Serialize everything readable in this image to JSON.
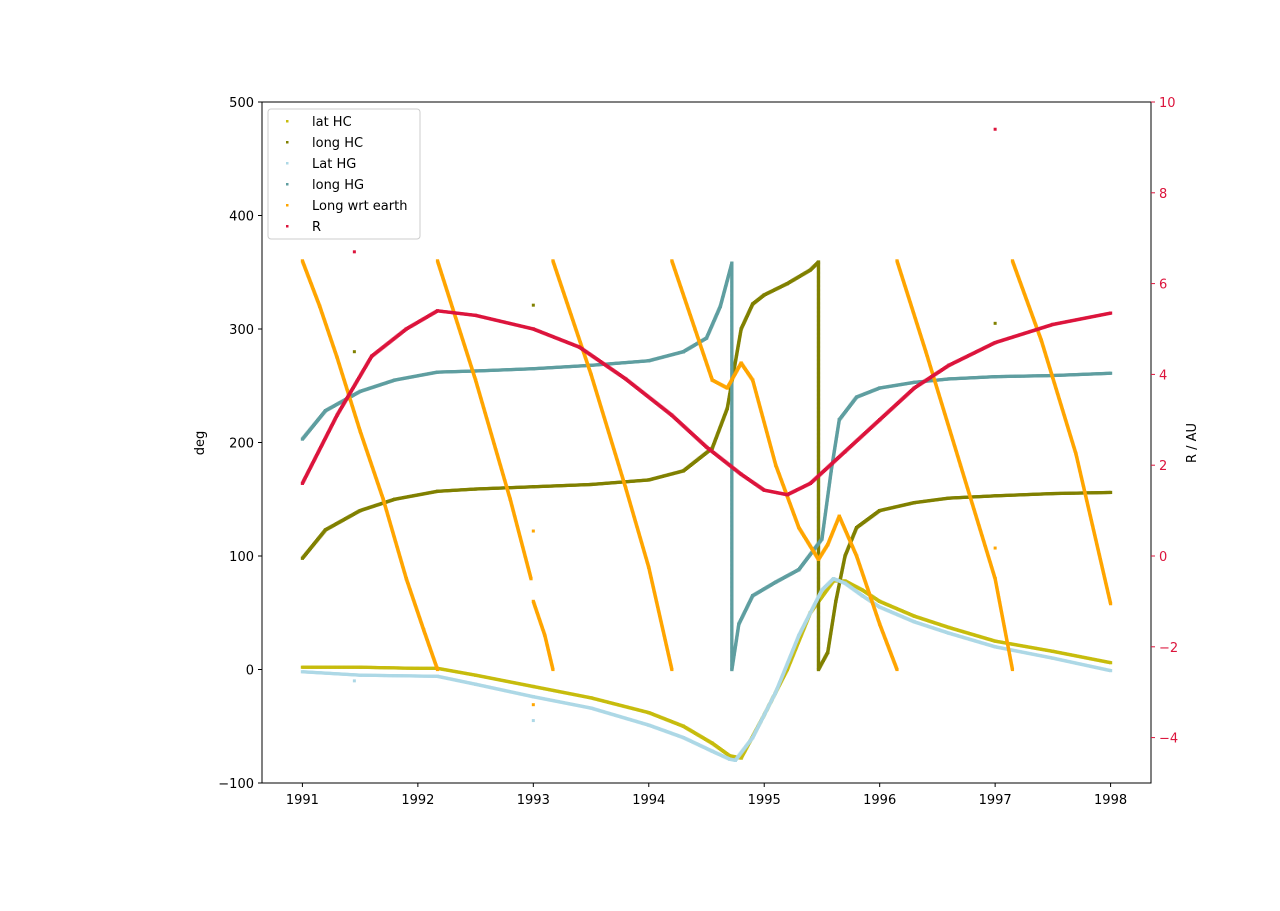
{
  "chart_data": {
    "type": "scatter",
    "title": "",
    "xlabel": "",
    "ylabel": "deg",
    "y2label": "R / AU",
    "xlim": [
      1990.65,
      1998.35
    ],
    "ylim": [
      -100,
      500
    ],
    "y2lim": [
      -5,
      10
    ],
    "x_ticks": [
      1991,
      1992,
      1993,
      1994,
      1995,
      1996,
      1997,
      1998
    ],
    "y_ticks": [
      -100,
      0,
      100,
      200,
      300,
      400,
      500
    ],
    "y2_ticks": [
      -4,
      -2,
      0,
      2,
      4,
      6,
      8,
      10
    ],
    "grid": false,
    "legend_position": "upper-left",
    "colors": {
      "lat_hc": "#c7bc0d",
      "long_hc": "#808000",
      "lat_hg": "#add8e6",
      "long_hg": "#5f9ea0",
      "long_wrt_earth": "#ffa500",
      "r": "#dc143c",
      "r_axis": "#dc143c"
    },
    "series": [
      {
        "name": "lat HC",
        "key": "lat_hc",
        "axis": "left",
        "points": [
          [
            1991.0,
            2
          ],
          [
            1991.5,
            2
          ],
          [
            1992.0,
            1
          ],
          [
            1992.17,
            1
          ],
          [
            1992.5,
            -5
          ],
          [
            1993.0,
            -15
          ],
          [
            1993.5,
            -25
          ],
          [
            1994.0,
            -38
          ],
          [
            1994.3,
            -50
          ],
          [
            1994.55,
            -65
          ],
          [
            1994.7,
            -76
          ],
          [
            1994.8,
            -78
          ],
          [
            1995.0,
            -40
          ],
          [
            1995.2,
            0
          ],
          [
            1995.4,
            50
          ],
          [
            1995.6,
            78
          ],
          [
            1995.7,
            78
          ],
          [
            1995.85,
            70
          ],
          [
            1996.0,
            60
          ],
          [
            1996.3,
            47
          ],
          [
            1996.6,
            37
          ],
          [
            1997.0,
            25
          ],
          [
            1997.5,
            16
          ],
          [
            1998.0,
            6
          ]
        ]
      },
      {
        "name": "long HC",
        "key": "long_hc",
        "axis": "left",
        "points": [
          [
            1991.0,
            98
          ],
          [
            1991.2,
            123
          ],
          [
            1991.5,
            140
          ],
          [
            1991.8,
            150
          ],
          [
            1992.17,
            157
          ],
          [
            1992.5,
            159
          ],
          [
            1993.0,
            161
          ],
          [
            1993.5,
            163
          ],
          [
            1994.0,
            167
          ],
          [
            1994.3,
            175
          ],
          [
            1994.55,
            195
          ],
          [
            1994.68,
            230
          ],
          [
            1994.8,
            300
          ],
          [
            1994.9,
            322
          ],
          [
            1995.0,
            330
          ],
          [
            1995.2,
            340
          ],
          [
            1995.4,
            352
          ],
          [
            1995.47,
            359
          ],
          [
            1995.47,
            0
          ],
          [
            1995.55,
            15
          ],
          [
            1995.62,
            60
          ],
          [
            1995.7,
            100
          ],
          [
            1995.8,
            125
          ],
          [
            1996.0,
            140
          ],
          [
            1996.3,
            147
          ],
          [
            1996.6,
            151
          ],
          [
            1997.0,
            153
          ],
          [
            1997.5,
            155
          ],
          [
            1998.0,
            156
          ]
        ]
      },
      {
        "name": "Lat HG",
        "key": "lat_hg",
        "axis": "left",
        "points": [
          [
            1991.0,
            -2
          ],
          [
            1991.5,
            -5
          ],
          [
            1992.17,
            -6
          ],
          [
            1992.5,
            -13
          ],
          [
            1993.0,
            -24
          ],
          [
            1993.5,
            -34
          ],
          [
            1994.0,
            -49
          ],
          [
            1994.3,
            -60
          ],
          [
            1994.55,
            -72
          ],
          [
            1994.7,
            -79
          ],
          [
            1994.75,
            -80
          ],
          [
            1994.9,
            -60
          ],
          [
            1995.1,
            -20
          ],
          [
            1995.3,
            30
          ],
          [
            1995.5,
            70
          ],
          [
            1995.6,
            80
          ],
          [
            1995.7,
            76
          ],
          [
            1995.85,
            65
          ],
          [
            1996.0,
            55
          ],
          [
            1996.3,
            42
          ],
          [
            1996.6,
            32
          ],
          [
            1997.0,
            20
          ],
          [
            1997.5,
            10
          ],
          [
            1998.0,
            -1
          ]
        ]
      },
      {
        "name": "long HG",
        "key": "long_hg",
        "axis": "left",
        "points": [
          [
            1991.0,
            203
          ],
          [
            1991.2,
            228
          ],
          [
            1991.5,
            245
          ],
          [
            1991.8,
            255
          ],
          [
            1992.17,
            262
          ],
          [
            1992.5,
            263
          ],
          [
            1993.0,
            265
          ],
          [
            1993.5,
            268
          ],
          [
            1994.0,
            272
          ],
          [
            1994.3,
            280
          ],
          [
            1994.5,
            292
          ],
          [
            1994.62,
            320
          ],
          [
            1994.72,
            358
          ],
          [
            1994.72,
            0
          ],
          [
            1994.78,
            40
          ],
          [
            1994.9,
            65
          ],
          [
            1995.1,
            77
          ],
          [
            1995.3,
            88
          ],
          [
            1995.5,
            115
          ],
          [
            1995.58,
            175
          ],
          [
            1995.65,
            220
          ],
          [
            1995.8,
            240
          ],
          [
            1996.0,
            248
          ],
          [
            1996.3,
            253
          ],
          [
            1996.6,
            256
          ],
          [
            1997.0,
            258
          ],
          [
            1997.5,
            259
          ],
          [
            1998.0,
            261
          ]
        ]
      },
      {
        "name": "Long wrt earth",
        "key": "long_wrt_earth",
        "axis": "left",
        "segments": [
          [
            [
              1991.0,
              360
            ],
            [
              1991.15,
              320
            ],
            [
              1991.3,
              275
            ],
            [
              1991.5,
              210
            ],
            [
              1991.7,
              150
            ],
            [
              1991.9,
              80
            ],
            [
              1992.05,
              35
            ],
            [
              1992.17,
              0
            ]
          ],
          [
            [
              1992.17,
              360
            ],
            [
              1992.5,
              255
            ],
            [
              1992.8,
              150
            ],
            [
              1992.98,
              80
            ]
          ],
          [
            [
              1993.0,
              60
            ],
            [
              1993.1,
              30
            ],
            [
              1993.17,
              0
            ]
          ],
          [
            [
              1993.17,
              360
            ],
            [
              1993.5,
              260
            ],
            [
              1993.8,
              160
            ],
            [
              1994.0,
              90
            ],
            [
              1994.2,
              0
            ]
          ],
          [
            [
              1994.2,
              360
            ],
            [
              1994.4,
              300
            ],
            [
              1994.55,
              255
            ],
            [
              1994.68,
              248
            ],
            [
              1994.8,
              270
            ],
            [
              1994.9,
              255
            ],
            [
              1995.1,
              180
            ],
            [
              1995.3,
              125
            ],
            [
              1995.47,
              97
            ],
            [
              1995.55,
              110
            ],
            [
              1995.65,
              135
            ],
            [
              1995.8,
              100
            ],
            [
              1996.0,
              40
            ],
            [
              1996.15,
              0
            ]
          ],
          [
            [
              1996.15,
              360
            ],
            [
              1996.4,
              280
            ],
            [
              1996.7,
              180
            ],
            [
              1997.0,
              80
            ],
            [
              1997.15,
              0
            ]
          ],
          [
            [
              1997.15,
              360
            ],
            [
              1997.4,
              290
            ],
            [
              1997.7,
              190
            ],
            [
              1998.0,
              58
            ]
          ]
        ]
      },
      {
        "name": "R",
        "key": "r",
        "axis": "right",
        "points": [
          [
            1991.0,
            1.6
          ],
          [
            1991.3,
            3.1
          ],
          [
            1991.6,
            4.4
          ],
          [
            1991.9,
            5.0
          ],
          [
            1992.17,
            5.4
          ],
          [
            1992.5,
            5.3
          ],
          [
            1993.0,
            5.0
          ],
          [
            1993.4,
            4.6
          ],
          [
            1993.8,
            3.9
          ],
          [
            1994.2,
            3.1
          ],
          [
            1994.5,
            2.4
          ],
          [
            1994.8,
            1.8
          ],
          [
            1995.0,
            1.45
          ],
          [
            1995.2,
            1.35
          ],
          [
            1995.4,
            1.6
          ],
          [
            1995.7,
            2.3
          ],
          [
            1996.0,
            3.0
          ],
          [
            1996.3,
            3.7
          ],
          [
            1996.6,
            4.2
          ],
          [
            1997.0,
            4.7
          ],
          [
            1997.5,
            5.1
          ],
          [
            1998.0,
            5.35
          ]
        ]
      }
    ],
    "outliers": [
      {
        "key": "long_hc",
        "x": 1991.45,
        "y": 280
      },
      {
        "key": "long_hc",
        "x": 1993.0,
        "y": 321
      },
      {
        "key": "long_hc",
        "x": 1997.0,
        "y": 305
      },
      {
        "key": "lat_hg",
        "x": 1991.45,
        "y": -10
      },
      {
        "key": "lat_hg",
        "x": 1993.0,
        "y": -45
      },
      {
        "key": "long_wrt_earth",
        "x": 1993.0,
        "y": 122
      },
      {
        "key": "long_wrt_earth",
        "x": 1993.0,
        "y": -31
      },
      {
        "key": "long_wrt_earth",
        "x": 1997.0,
        "y": 107
      },
      {
        "key": "r",
        "x": 1991.45,
        "y": 6.7
      },
      {
        "key": "r",
        "x": 1997.0,
        "y": 9.4
      }
    ]
  }
}
